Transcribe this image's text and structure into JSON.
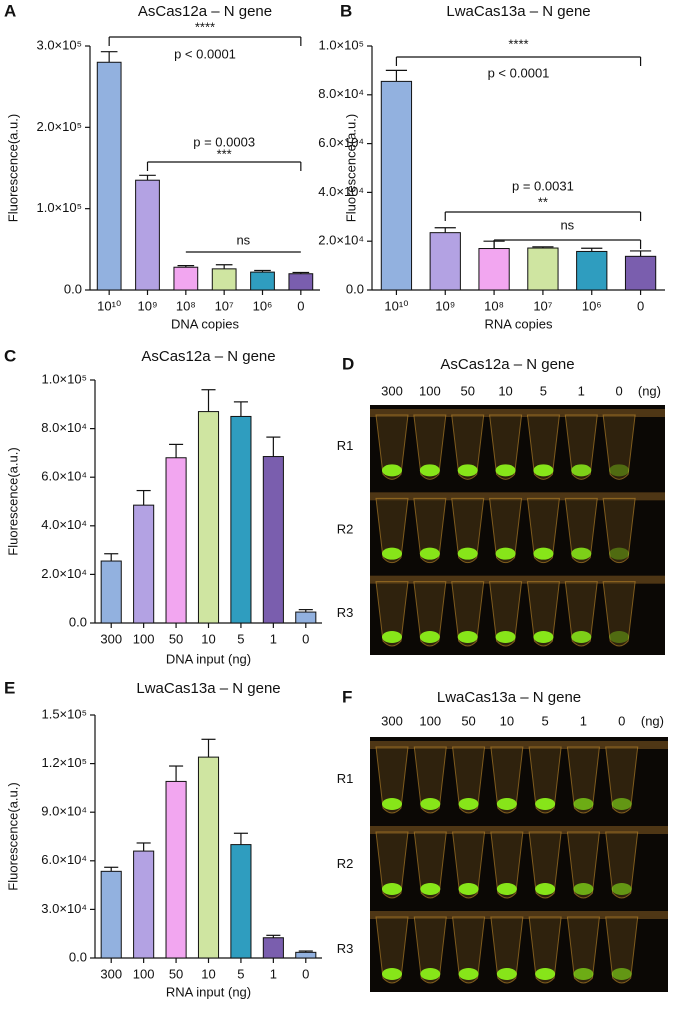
{
  "chart_data": [
    {
      "type": "bar",
      "panel": "A",
      "title": "AsCas12a – N gene",
      "x_label": "DNA copies",
      "y_label": "Fluorescence(a.u.)",
      "categories": [
        "10¹⁰",
        "10⁹",
        "10⁸",
        "10⁷",
        "10⁶",
        "0"
      ],
      "values": [
        280000,
        135000,
        28000,
        26000,
        22000,
        20000
      ],
      "errors": [
        13000,
        6000,
        2000,
        5000,
        2000,
        1500
      ],
      "colors": [
        "#92b1df",
        "#b3a2e3",
        "#f2a6f0",
        "#cfe5a1",
        "#2f9dbf",
        "#7a5eae"
      ],
      "ylim": [
        0,
        300000
      ],
      "yticks": [
        {
          "value": 0,
          "label": "0.0"
        },
        {
          "value": 100000,
          "label": "1.0×10⁵"
        },
        {
          "value": 200000,
          "label": "2.0×10⁵"
        },
        {
          "value": 300000,
          "label": "3.0×10⁵"
        }
      ],
      "annotations": [
        "****",
        "p < 0.0001",
        "p = 0.0003",
        "***",
        "ns"
      ]
    },
    {
      "type": "bar",
      "panel": "B",
      "title": "LwaCas13a – N gene",
      "x_label": "RNA copies",
      "y_label": "Fluorescence(a.u.)",
      "categories": [
        "10¹⁰",
        "10⁹",
        "10⁸",
        "10⁷",
        "10⁶",
        "0"
      ],
      "values": [
        85500,
        23500,
        17000,
        17200,
        15800,
        13800
      ],
      "errors": [
        4500,
        2000,
        3000,
        500,
        1300,
        2200
      ],
      "colors": [
        "#92b1df",
        "#b3a2e3",
        "#f2a6f0",
        "#cfe5a1",
        "#2f9dbf",
        "#7a5eae"
      ],
      "ylim": [
        0,
        100000
      ],
      "yticks": [
        {
          "value": 0,
          "label": "0.0"
        },
        {
          "value": 20000,
          "label": "2.0×10⁴"
        },
        {
          "value": 40000,
          "label": "4.0×10⁴"
        },
        {
          "value": 60000,
          "label": "6.0×10⁴"
        },
        {
          "value": 80000,
          "label": "8.0×10⁴"
        },
        {
          "value": 100000,
          "label": "1.0×10⁵"
        }
      ],
      "annotations": [
        "****",
        "p < 0.0001",
        "p = 0.0031",
        "**",
        "ns"
      ]
    },
    {
      "type": "bar",
      "panel": "C",
      "title": "AsCas12a – N gene",
      "x_label": "DNA input (ng)",
      "y_label": "Fluorescence(a.u.)",
      "categories": [
        "300",
        "100",
        "50",
        "10",
        "5",
        "1",
        "0"
      ],
      "values": [
        25500,
        48500,
        68000,
        87000,
        85000,
        68500,
        4500
      ],
      "errors": [
        3000,
        6000,
        5500,
        9000,
        6000,
        8000,
        1000
      ],
      "colors": [
        "#92b1df",
        "#b3a2e3",
        "#f2a6f0",
        "#cfe5a1",
        "#2f9dbf",
        "#7a5eae",
        "#92b1df"
      ],
      "ylim": [
        0,
        100000
      ],
      "yticks": [
        {
          "value": 0,
          "label": "0.0"
        },
        {
          "value": 20000,
          "label": "2.0×10⁴"
        },
        {
          "value": 40000,
          "label": "4.0×10⁴"
        },
        {
          "value": 60000,
          "label": "6.0×10⁴"
        },
        {
          "value": 80000,
          "label": "8.0×10⁴"
        },
        {
          "value": 100000,
          "label": "1.0×10⁵"
        }
      ]
    },
    {
      "type": "bar",
      "panel": "E",
      "title": "LwaCas13a – N gene",
      "x_label": "RNA input (ng)",
      "y_label": "Fluorescence(a.u.)",
      "categories": [
        "300",
        "100",
        "50",
        "10",
        "5",
        "1",
        "0"
      ],
      "values": [
        53500,
        66000,
        109000,
        124000,
        70000,
        12500,
        3500
      ],
      "errors": [
        2500,
        5000,
        9500,
        11000,
        7000,
        1500,
        800
      ],
      "colors": [
        "#92b1df",
        "#b3a2e3",
        "#f2a6f0",
        "#cfe5a1",
        "#2f9dbf",
        "#7a5eae",
        "#92b1df"
      ],
      "ylim": [
        0,
        150000
      ],
      "yticks": [
        {
          "value": 0,
          "label": "0.0"
        },
        {
          "value": 30000,
          "label": "3.0×10⁴"
        },
        {
          "value": 60000,
          "label": "6.0×10⁴"
        },
        {
          "value": 90000,
          "label": "9.0×10⁴"
        },
        {
          "value": 120000,
          "label": "1.2×10⁵"
        },
        {
          "value": 150000,
          "label": "1.5×10⁵"
        }
      ]
    }
  ],
  "photo_panels": [
    {
      "panel": "D",
      "title": "AsCas12a – N gene",
      "columns": [
        "300",
        "100",
        "50",
        "10",
        "5",
        "1",
        "0"
      ],
      "unit": "(ng)",
      "rows": [
        "R1",
        "R2",
        "R3"
      ]
    },
    {
      "panel": "F",
      "title": "LwaCas13a – N gene",
      "columns": [
        "300",
        "100",
        "50",
        "10",
        "5",
        "1",
        "0"
      ],
      "unit": "(ng)",
      "rows": [
        "R1",
        "R2",
        "R3"
      ]
    }
  ]
}
